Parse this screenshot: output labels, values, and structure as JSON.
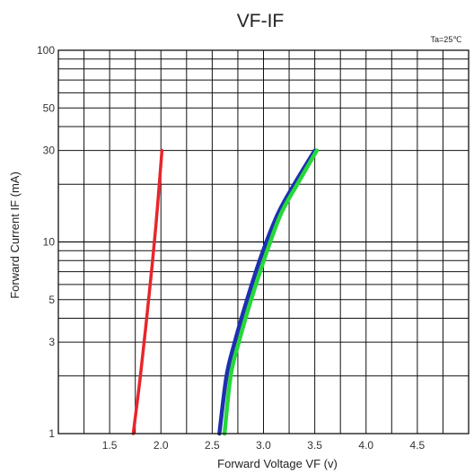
{
  "chart_data": {
    "type": "line",
    "title": "VF-IF",
    "note": "Ta=25℃",
    "xlabel": "Forward  Voltage  VF  (v)",
    "ylabel": "Forward Current IF (mA)",
    "x_scale": "linear",
    "y_scale": "log",
    "xlim": [
      1.0,
      5.0
    ],
    "ylim": [
      1,
      100
    ],
    "x_ticks": [
      1.5,
      2.0,
      2.5,
      3.0,
      3.5,
      4.0,
      4.5
    ],
    "x_tick_labels": [
      "1.5",
      "2.0",
      "2.5",
      "3.0",
      "3.5",
      "4.0",
      "4.5"
    ],
    "y_ticks": [
      1,
      3,
      5,
      10,
      30,
      50,
      100
    ],
    "y_tick_labels": [
      "1",
      "3",
      "5",
      "10",
      "30",
      "50",
      "100"
    ],
    "grid": true,
    "series": [
      {
        "color": "#e8262b",
        "x": [
          1.73,
          1.8,
          1.88,
          1.95,
          2.01
        ],
        "y": [
          1,
          2,
          5,
          12,
          30
        ]
      },
      {
        "color": "#1e2fb0",
        "x": [
          2.57,
          2.64,
          2.72,
          2.84,
          2.98,
          3.14,
          3.3,
          3.5
        ],
        "y": [
          1,
          2,
          3,
          5,
          8.5,
          14,
          20,
          30
        ]
      },
      {
        "color": "#26d83a",
        "x": [
          2.62,
          2.68,
          2.76,
          2.88,
          3.02,
          3.17,
          3.33,
          3.52
        ],
        "y": [
          1,
          2,
          3,
          5,
          8.5,
          14,
          20,
          30
        ]
      }
    ]
  }
}
